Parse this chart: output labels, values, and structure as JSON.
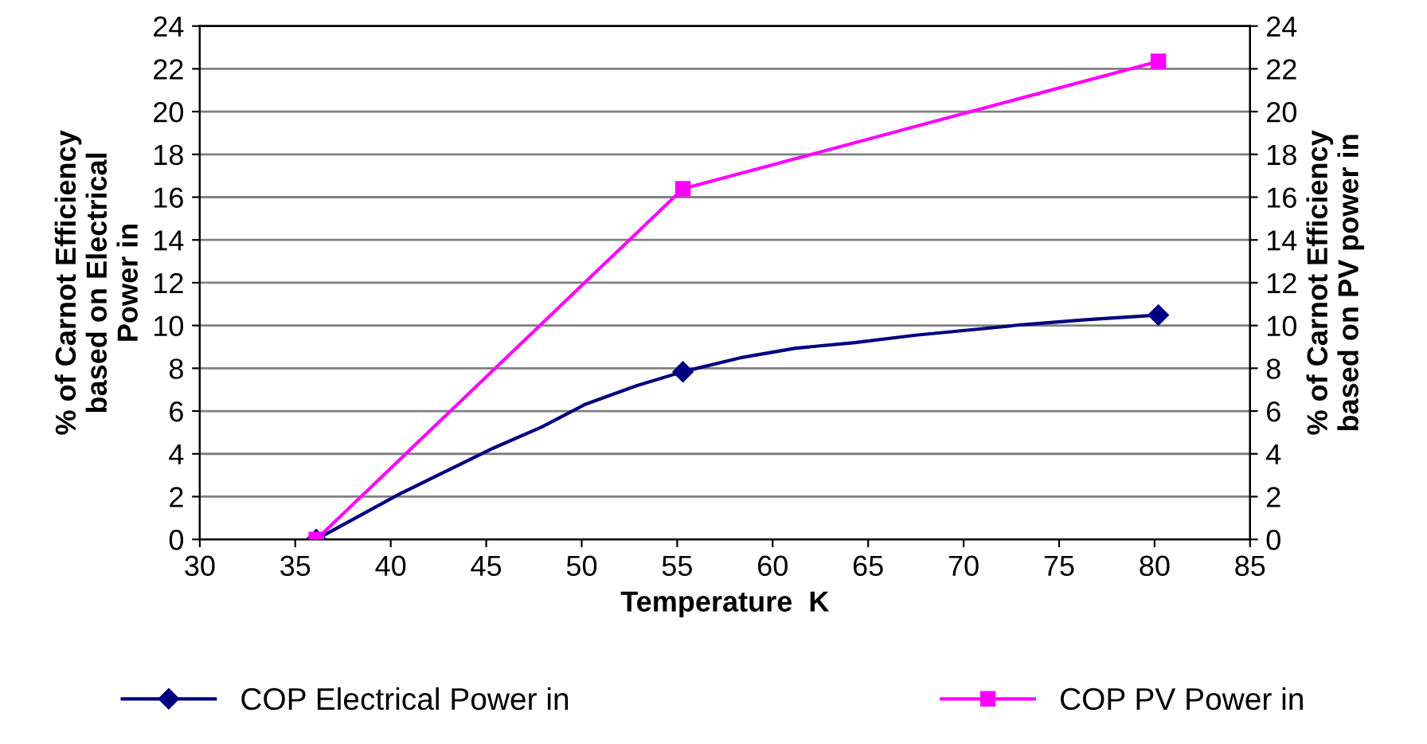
{
  "chart_data": {
    "type": "line",
    "xlabel": "Temperature  K",
    "ylabel": "% of Carnot Efficiency\nbased on Electrical\nPower in",
    "y2label": "% of Carnot Efficiency\nbased on PV power in",
    "series": [
      {
        "name": "COP Electrical Power in",
        "color": "#000080",
        "x": [
          36.1,
          40.5,
          45.4,
          47.9,
          50.2,
          52.9,
          55.3,
          58.3,
          61.2,
          64.3,
          67.5,
          70.2,
          73.1,
          76.4,
          80.2
        ],
        "values": [
          0,
          2.14,
          4.28,
          5.25,
          6.32,
          7.19,
          7.84,
          8.49,
          8.94,
          9.2,
          9.55,
          9.78,
          10.04,
          10.27,
          10.49
        ],
        "marker": "none"
      },
      {
        "type": "scatter",
        "color": "#000080",
        "x": [
          36.1,
          55.3,
          80.2
        ],
        "values": [
          0,
          7.84,
          10.49
        ],
        "marker": "diamond"
      },
      {
        "name": "COP PV Power in",
        "color": "#ff00ff",
        "x": [
          36.1,
          55.3,
          80.2
        ],
        "values": [
          0,
          16.39,
          22.35
        ],
        "marker": "square",
        "axis": "y2"
      }
    ],
    "xlim": [
      30,
      85
    ],
    "xticks": [
      30,
      35,
      40,
      45,
      50,
      55,
      60,
      65,
      70,
      75,
      80,
      85
    ],
    "ylim": [
      0,
      24
    ],
    "yticks": [
      0,
      2,
      4,
      6,
      8,
      10,
      12,
      14,
      16,
      18,
      20,
      22,
      24
    ],
    "y2lim": [
      0,
      24
    ],
    "y2ticks": [
      0,
      2,
      4,
      6,
      8,
      10,
      12,
      14,
      16,
      18,
      20,
      22,
      24
    ],
    "grid": "y",
    "legend": "bottom"
  }
}
